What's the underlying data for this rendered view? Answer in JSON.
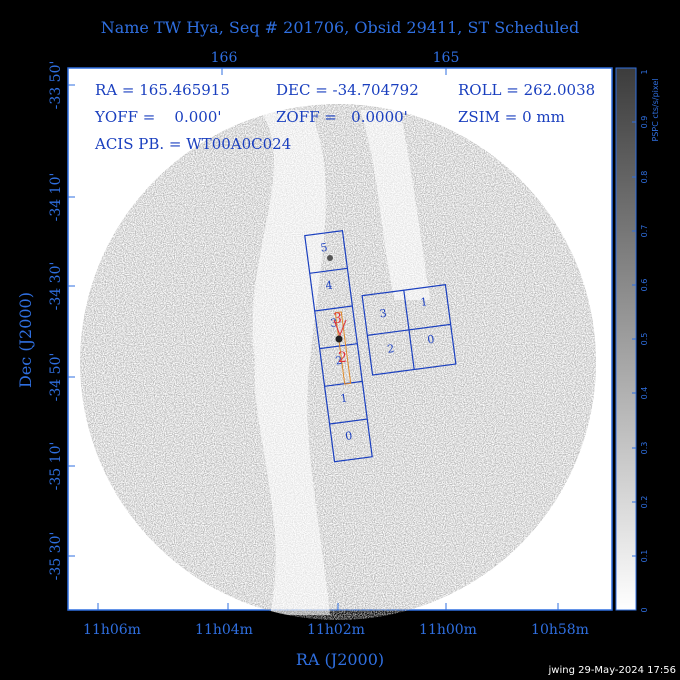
{
  "title": "Name TW Hya, Seq # 201706, Obsid 29411, ST Scheduled",
  "top_ticks": [
    "166",
    "165"
  ],
  "bottom_ticks": [
    "11h06m",
    "11h04m",
    "11h02m",
    "11h00m",
    "10h58m"
  ],
  "left_ticks": [
    "-33 50'",
    "-34 10'",
    "-34 30'",
    "-34 50'",
    "-35 10'",
    "-35 30'"
  ],
  "xlabel": "RA (J2000)",
  "ylabel": "Dec (J2000)",
  "info": {
    "ra": "RA = 165.465915",
    "dec": "DEC = -34.704792",
    "roll": "ROLL = 262.0038",
    "yoff": "YOFF =    0.000'",
    "zoff": "ZOFF =   0.0000'",
    "zsim": "ZSIM = 0 mm",
    "acis": "ACIS PB. = WT00A0C024"
  },
  "colorbar": {
    "label": "PSPC cts/s/pixel",
    "ticks": [
      "0",
      "0.1",
      "0.2",
      "0.3",
      "0.4",
      "0.5",
      "0.6",
      "0.7",
      "0.8",
      "0.9",
      "1"
    ]
  },
  "chips": {
    "strip": [
      "5",
      "4",
      "3",
      "2",
      "1",
      "0"
    ],
    "square": [
      "3",
      "1",
      "2",
      "0"
    ]
  },
  "hrc_labels": [
    "3",
    "2"
  ],
  "footer": "jwing 29-May-2024 17:56",
  "colors": {
    "axis_blue": "#2f6fe0",
    "text_blue": "#1a3fbf",
    "hrc_red": "#e0303a",
    "slit_orange": "#e08a2a"
  }
}
